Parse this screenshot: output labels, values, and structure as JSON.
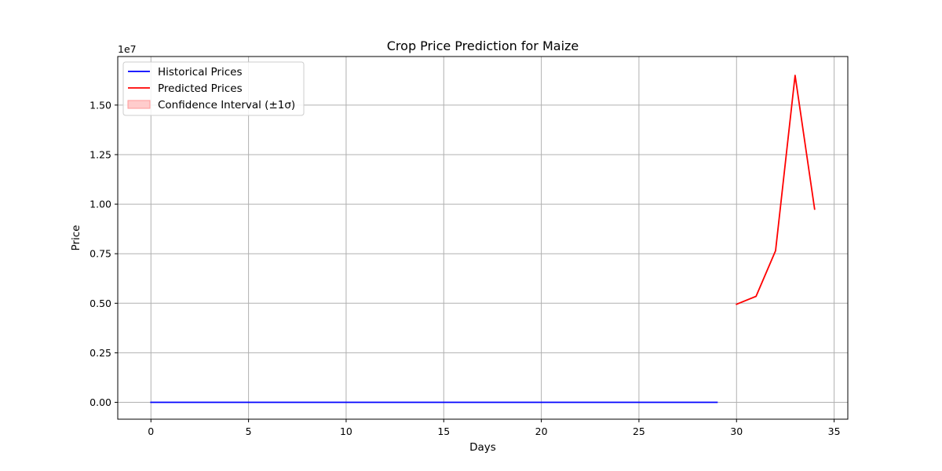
{
  "chart_data": {
    "type": "line",
    "title": "Crop Price Prediction for Maize",
    "xlabel": "Days",
    "ylabel": "Price",
    "y_offset_label": "1e7",
    "xlim": [
      -1.7,
      35.7
    ],
    "ylim": [
      -850000,
      17450000
    ],
    "x_ticks": [
      0,
      5,
      10,
      15,
      20,
      25,
      30,
      35
    ],
    "y_ticks": [
      0,
      2500000,
      5000000,
      7500000,
      10000000,
      12500000,
      15000000
    ],
    "y_tick_labels": [
      "0.00",
      "0.25",
      "0.50",
      "0.75",
      "1.00",
      "1.25",
      "1.50"
    ],
    "grid": true,
    "legend_position": "upper-left",
    "series": [
      {
        "name": "Historical Prices",
        "color": "#0000ff",
        "x": [
          0,
          1,
          2,
          3,
          4,
          5,
          6,
          7,
          8,
          9,
          10,
          11,
          12,
          13,
          14,
          15,
          16,
          17,
          18,
          19,
          20,
          21,
          22,
          23,
          24,
          25,
          26,
          27,
          28,
          29
        ],
        "y": [
          2000,
          2000,
          2000,
          2000,
          2000,
          2000,
          2000,
          2000,
          2000,
          2000,
          2000,
          2000,
          2000,
          2000,
          2000,
          2000,
          2000,
          2000,
          2000,
          2000,
          2000,
          2000,
          2000,
          2000,
          2000,
          2000,
          2000,
          2000,
          2000,
          2000
        ]
      },
      {
        "name": "Predicted Prices",
        "color": "#ff0000",
        "x": [
          30,
          31,
          32,
          33,
          34
        ],
        "y": [
          4950000,
          5350000,
          7650000,
          16500000,
          9750000
        ]
      }
    ],
    "legend_entries": [
      {
        "label": "Historical Prices",
        "kind": "line",
        "color": "#0000ff"
      },
      {
        "label": "Predicted Prices",
        "kind": "line",
        "color": "#ff0000"
      },
      {
        "label": "Confidence Interval (±1σ)",
        "kind": "patch",
        "color": "#ffcccc"
      }
    ]
  }
}
